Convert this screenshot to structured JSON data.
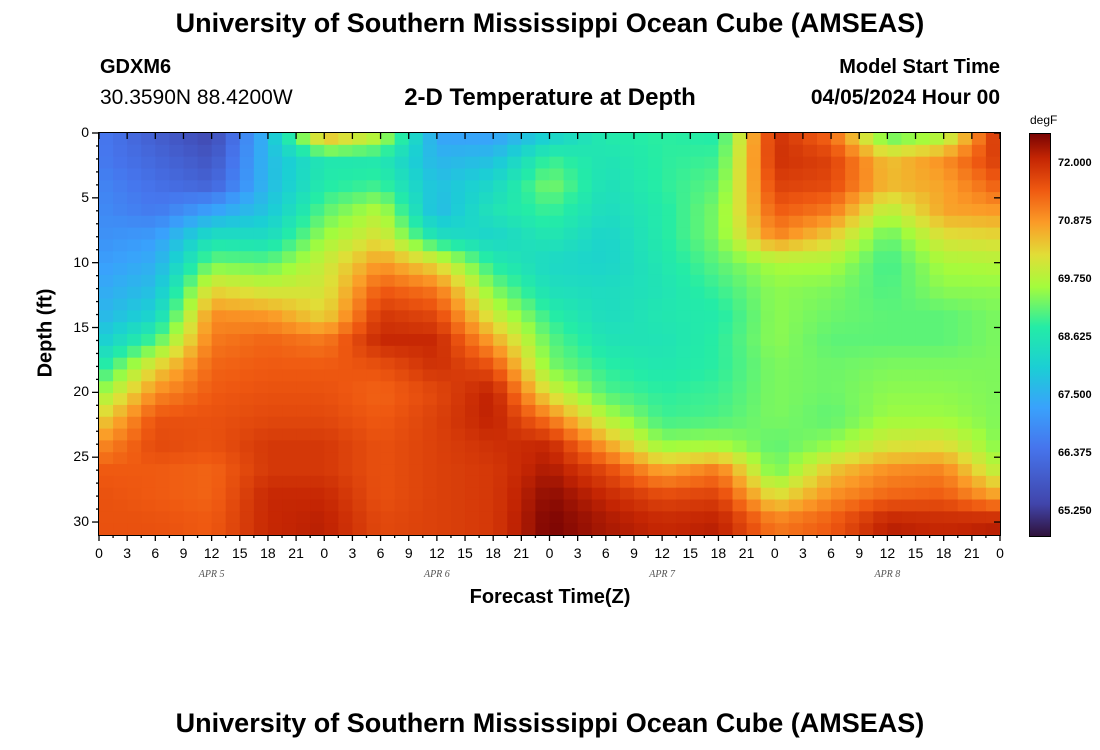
{
  "page": {
    "title_top": "University of Southern Mississippi Ocean Cube (AMSEAS)",
    "title_bottom": "University of Southern Mississippi Ocean Cube (AMSEAS)",
    "station_id": "GDXM6",
    "coords": "30.3590N  88.4200W",
    "chart_title": "2-D Temperature at Depth",
    "model_start_label": "Model Start Time",
    "model_start_value": "04/05/2024 Hour 00"
  },
  "chart_data": {
    "type": "heatmap",
    "title": "2-D Temperature at Depth",
    "xlabel": "Forecast Time(Z)",
    "ylabel": "Depth (ft)",
    "x_ticks": [
      "0",
      "3",
      "6",
      "9",
      "12",
      "15",
      "18",
      "21",
      "0",
      "3",
      "6",
      "9",
      "12",
      "15",
      "18",
      "21",
      "0",
      "3",
      "6",
      "9",
      "12",
      "15",
      "18",
      "21",
      "0",
      "3",
      "6",
      "9",
      "12",
      "15",
      "18",
      "21",
      "0"
    ],
    "x_range_hours": [
      0,
      96
    ],
    "date_labels": [
      {
        "text": "APR 5",
        "hour": 12
      },
      {
        "text": "APR 6",
        "hour": 36
      },
      {
        "text": "APR 7",
        "hour": 60
      },
      {
        "text": "APR 8",
        "hour": 84
      }
    ],
    "y_ticks": [
      0,
      5,
      10,
      15,
      20,
      25,
      30
    ],
    "y_range_ft": [
      0,
      31
    ],
    "colorbar": {
      "unit": "degF",
      "range": [
        64.8,
        72.6
      ],
      "ticks": [
        "72.000",
        "70.875",
        "69.750",
        "68.625",
        "67.500",
        "66.375",
        "65.250"
      ],
      "tick_values": [
        72.0,
        70.875,
        69.75,
        68.625,
        67.5,
        66.375,
        65.25
      ],
      "stops": [
        {
          "v": 0.0,
          "c": "#30123b"
        },
        {
          "v": 0.08,
          "c": "#4145ab"
        },
        {
          "v": 0.22,
          "c": "#4675ed"
        },
        {
          "v": 0.32,
          "c": "#39a2fc"
        },
        {
          "v": 0.42,
          "c": "#1bcfd4"
        },
        {
          "v": 0.52,
          "c": "#24eca6"
        },
        {
          "v": 0.62,
          "c": "#a4fc3c"
        },
        {
          "v": 0.7,
          "c": "#e1dd37"
        },
        {
          "v": 0.78,
          "c": "#fb9b27"
        },
        {
          "v": 0.86,
          "c": "#ef5911"
        },
        {
          "v": 0.94,
          "c": "#c42503"
        },
        {
          "v": 1.0,
          "c": "#7a0403"
        }
      ]
    },
    "grid": {
      "hours": [
        0,
        6,
        12,
        18,
        24,
        30,
        36,
        42,
        48,
        54,
        60,
        66,
        72,
        78,
        84,
        90,
        96
      ],
      "depths_ft": [
        0,
        2,
        4,
        6,
        8,
        10,
        12,
        14,
        16,
        18,
        20,
        22,
        24,
        26,
        28,
        30
      ],
      "temps_degF": [
        [
          66.6,
          66.0,
          65.5,
          67.7,
          71.0,
          70.0,
          67.3,
          67.2,
          68.0,
          68.8,
          68.9,
          68.8,
          72.0,
          71.3,
          69.0,
          69.5,
          72.1
        ],
        [
          66.6,
          66.2,
          65.8,
          67.7,
          68.7,
          68.7,
          67.6,
          67.8,
          69.0,
          68.6,
          68.9,
          69.0,
          72.0,
          71.8,
          70.5,
          71.0,
          71.9
        ],
        [
          66.8,
          66.4,
          66.1,
          67.7,
          68.8,
          69.0,
          67.8,
          68.3,
          69.4,
          68.5,
          68.9,
          69.2,
          71.8,
          71.7,
          70.6,
          70.8,
          71.5
        ],
        [
          66.9,
          66.6,
          67.3,
          67.9,
          69.2,
          69.8,
          67.7,
          68.6,
          69.0,
          68.4,
          68.8,
          69.4,
          71.5,
          71.2,
          69.8,
          70.8,
          70.9
        ],
        [
          67.0,
          67.2,
          68.5,
          68.4,
          69.6,
          70.2,
          68.5,
          68.2,
          68.7,
          68.2,
          68.8,
          69.4,
          71.1,
          70.4,
          69.2,
          70.2,
          70.3
        ],
        [
          67.2,
          67.5,
          69.3,
          69.2,
          70.0,
          70.9,
          70.2,
          68.8,
          68.3,
          68.2,
          68.7,
          69.2,
          69.7,
          69.7,
          69.0,
          69.7,
          69.8
        ],
        [
          67.4,
          67.8,
          70.3,
          70.0,
          70.1,
          71.5,
          71.2,
          69.4,
          68.5,
          68.4,
          68.6,
          69.0,
          69.5,
          69.4,
          69.1,
          69.5,
          69.5
        ],
        [
          67.6,
          68.2,
          71.0,
          70.9,
          70.3,
          71.9,
          71.7,
          70.0,
          68.9,
          68.4,
          68.7,
          68.8,
          69.5,
          69.3,
          69.2,
          69.2,
          69.4
        ],
        [
          68.0,
          69.1,
          71.2,
          71.4,
          71.2,
          72.1,
          72.1,
          70.8,
          69.2,
          68.6,
          68.6,
          68.9,
          69.5,
          69.2,
          69.2,
          69.2,
          69.4
        ],
        [
          68.7,
          70.3,
          71.4,
          71.5,
          71.5,
          71.6,
          72.0,
          71.6,
          69.4,
          68.9,
          68.7,
          68.9,
          69.4,
          69.3,
          69.4,
          69.4,
          69.4
        ],
        [
          69.5,
          71.0,
          71.5,
          71.6,
          71.6,
          71.4,
          71.7,
          72.2,
          70.1,
          69.1,
          68.9,
          69.0,
          69.4,
          69.3,
          69.5,
          69.5,
          69.4
        ],
        [
          70.3,
          71.6,
          71.6,
          71.7,
          71.7,
          71.5,
          71.8,
          72.2,
          71.2,
          69.8,
          69.0,
          69.1,
          69.4,
          69.2,
          69.6,
          69.6,
          69.4
        ],
        [
          71.0,
          71.7,
          71.6,
          71.9,
          71.9,
          71.6,
          71.8,
          72.0,
          72.1,
          70.8,
          69.5,
          69.6,
          69.2,
          69.5,
          70.1,
          70.2,
          69.4
        ],
        [
          71.5,
          71.5,
          71.4,
          71.9,
          71.9,
          71.6,
          71.8,
          71.9,
          72.3,
          71.7,
          70.8,
          71.2,
          69.3,
          70.5,
          71.0,
          71.1,
          69.8
        ],
        [
          71.6,
          71.5,
          71.4,
          72.1,
          72.1,
          71.6,
          71.8,
          71.9,
          72.5,
          72.1,
          71.7,
          71.8,
          70.2,
          71.0,
          71.4,
          71.5,
          70.8
        ],
        [
          71.6,
          71.6,
          71.5,
          72.1,
          72.2,
          71.7,
          71.8,
          71.9,
          72.6,
          72.3,
          72.1,
          72.2,
          71.2,
          71.5,
          72.2,
          72.1,
          72.2
        ]
      ]
    }
  }
}
